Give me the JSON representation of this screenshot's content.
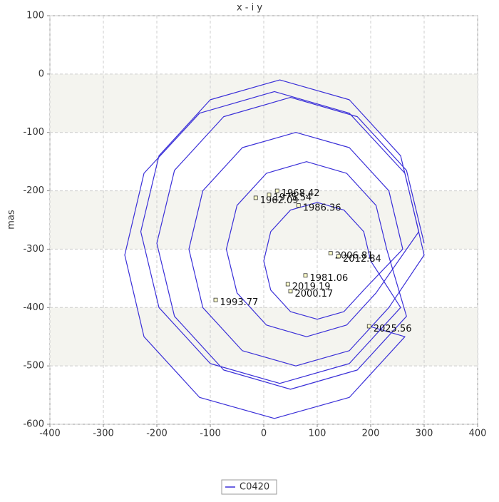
{
  "chart_data": {
    "type": "line",
    "title": "x - i y",
    "y_label": "mas",
    "xlim": [
      -400,
      400
    ],
    "xticks": [
      -400,
      -300,
      -200,
      -100,
      0,
      100,
      200,
      300,
      400
    ],
    "ylim": [
      -600,
      100
    ],
    "yticks": [
      -600,
      -500,
      -400,
      -300,
      -200,
      -100,
      0,
      100
    ],
    "grid": true,
    "bands": true,
    "legend": "bottom",
    "series": [
      {
        "name": "C0420",
        "color": "#3a2fd8",
        "x": [
          300,
          267,
          175,
          50,
          -75,
          -167,
          -200,
          -167,
          -75,
          50,
          175,
          267,
          230,
          210,
          155,
          80,
          5,
          -50,
          -70,
          -50,
          5,
          80,
          155,
          210,
          290,
          256,
          160,
          30,
          -100,
          -196,
          -230,
          -196,
          -100,
          30,
          160,
          256,
          200,
          187,
          150,
          100,
          50,
          13,
          0,
          13,
          50,
          100,
          150,
          187,
          260,
          234,
          160,
          60,
          -40,
          -114,
          -140,
          -114,
          -40,
          60,
          160,
          234,
          300,
          264,
          160,
          20,
          -120,
          -224,
          -260,
          -224,
          -120,
          20,
          160,
          264,
          197
        ],
        "y": [
          -290,
          -165,
          -73,
          -40,
          -73,
          -165,
          -290,
          -415,
          -507,
          -540,
          -507,
          -415,
          -300,
          -225,
          -170,
          -150,
          -170,
          -225,
          -300,
          -375,
          -430,
          -450,
          -430,
          -375,
          -270,
          -140,
          -44,
          -10,
          -44,
          -140,
          -270,
          -400,
          -496,
          -530,
          -496,
          -400,
          -320,
          -270,
          -233,
          -220,
          -233,
          -270,
          -320,
          -370,
          -407,
          -420,
          -407,
          -370,
          -300,
          -200,
          -126,
          -100,
          -126,
          -200,
          -300,
          -400,
          -474,
          -500,
          -474,
          -400,
          -310,
          -170,
          -67,
          -30,
          -67,
          -170,
          -310,
          -450,
          -554,
          -590,
          -554,
          -450,
          -432
        ]
      }
    ],
    "annotations": [
      {
        "text": "1962.09",
        "x": -15,
        "y": -212
      },
      {
        "text": "1968.42",
        "x": 25,
        "y": -200
      },
      {
        "text": "1975.54",
        "x": 10,
        "y": -207
      },
      {
        "text": "1986.36",
        "x": 65,
        "y": -225
      },
      {
        "text": "2006.81",
        "x": 125,
        "y": -307
      },
      {
        "text": "2012.84",
        "x": 140,
        "y": -312
      },
      {
        "text": "1981.06",
        "x": 78,
        "y": -345
      },
      {
        "text": "2019.19",
        "x": 45,
        "y": -360
      },
      {
        "text": "2000.17",
        "x": 50,
        "y": -372
      },
      {
        "text": "1993.77",
        "x": -90,
        "y": -387
      },
      {
        "text": "2025.56",
        "x": 197,
        "y": -432
      }
    ]
  }
}
